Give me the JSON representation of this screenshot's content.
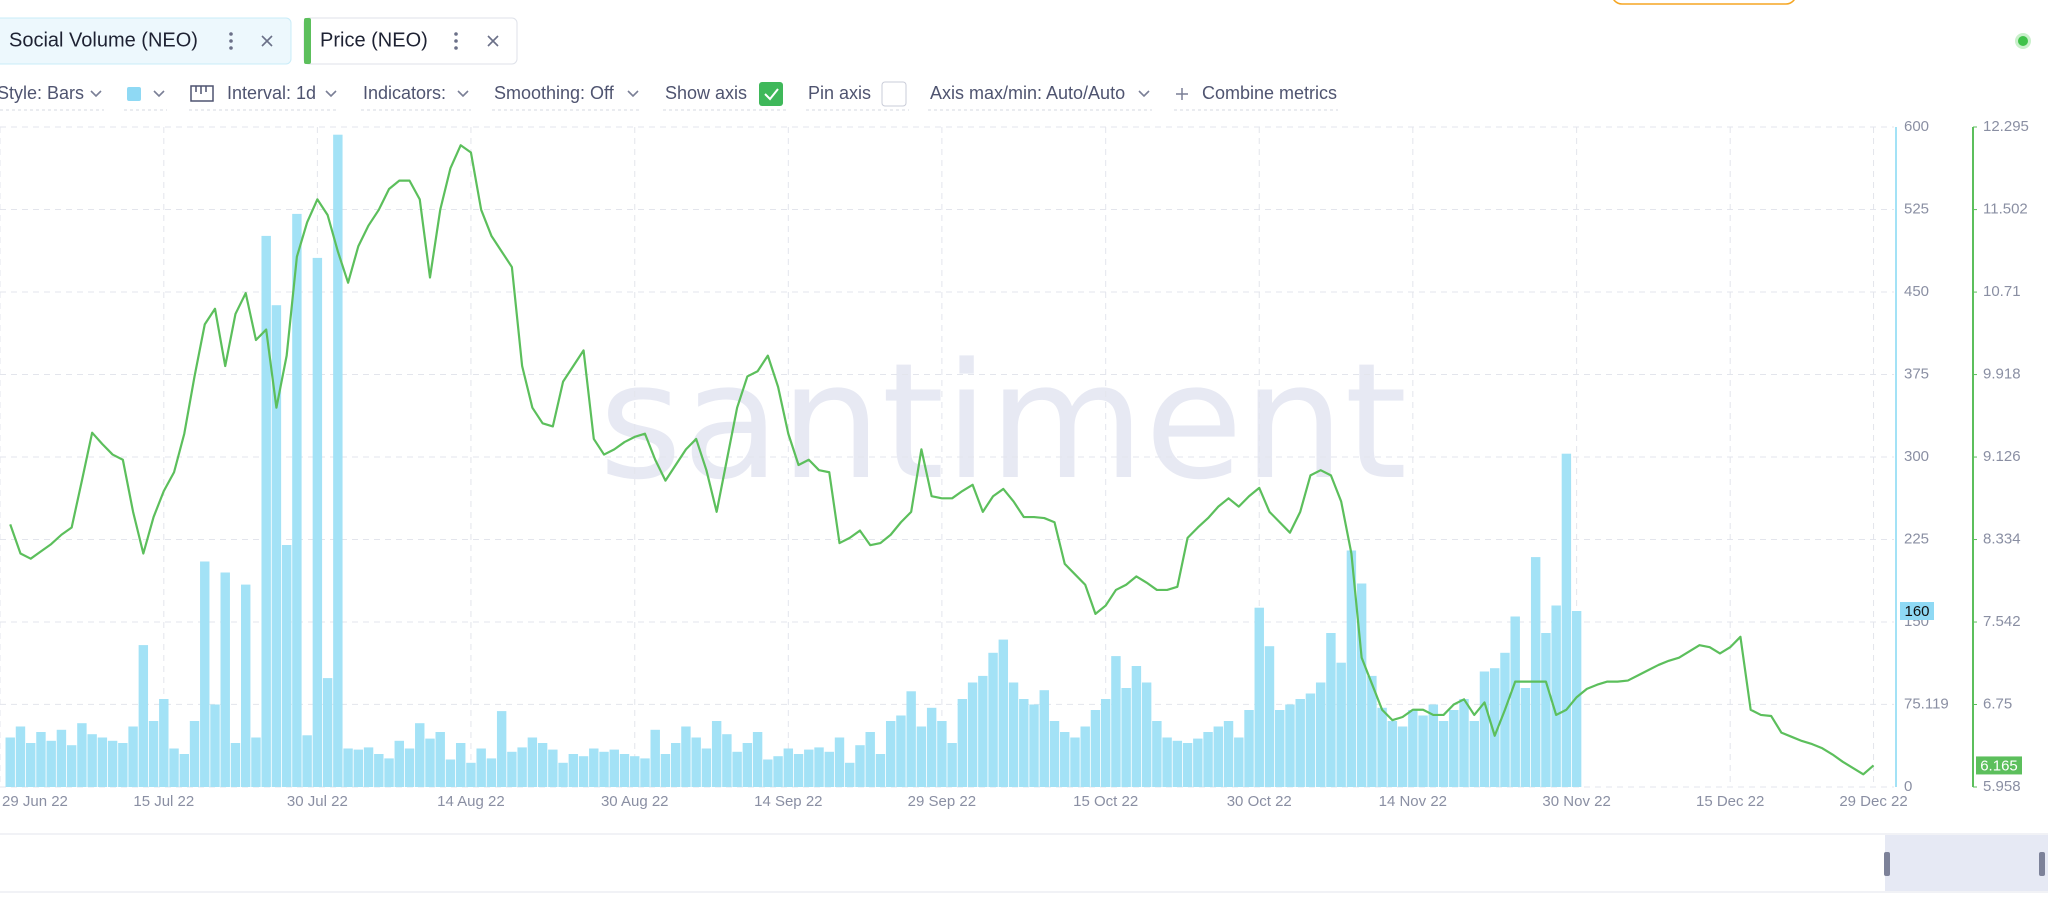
{
  "chart_data": {
    "type": "combo",
    "watermark": "santiment",
    "toolbar": {
      "style": "Style: Bars",
      "interval": "Interval: 1d",
      "indicators": "Indicators:",
      "smoothing": "Smoothing: Off",
      "show_axis": "Show axis",
      "pin_axis": "Pin axis",
      "axis_range": "Axis max/min: Auto/Auto",
      "combine": "Combine metrics"
    },
    "x": [
      "2022-06-30",
      "2022-07-01",
      "2022-07-02",
      "2022-07-03",
      "2022-07-04",
      "2022-07-05",
      "2022-07-06",
      "2022-07-07",
      "2022-07-08",
      "2022-07-09",
      "2022-07-10",
      "2022-07-11",
      "2022-07-12",
      "2022-07-13",
      "2022-07-14",
      "2022-07-15",
      "2022-07-16",
      "2022-07-17",
      "2022-07-18",
      "2022-07-19",
      "2022-07-20",
      "2022-07-21",
      "2022-07-22",
      "2022-07-23",
      "2022-07-24",
      "2022-07-25",
      "2022-07-26",
      "2022-07-27",
      "2022-07-28",
      "2022-07-29",
      "2022-07-30",
      "2022-07-31",
      "2022-08-01",
      "2022-08-02",
      "2022-08-03",
      "2022-08-04",
      "2022-08-05",
      "2022-08-06",
      "2022-08-07",
      "2022-08-08",
      "2022-08-09",
      "2022-08-10",
      "2022-08-11",
      "2022-08-12",
      "2022-08-13",
      "2022-08-14",
      "2022-08-15",
      "2022-08-16",
      "2022-08-17",
      "2022-08-18",
      "2022-08-19",
      "2022-08-20",
      "2022-08-21",
      "2022-08-22",
      "2022-08-23",
      "2022-08-24",
      "2022-08-25",
      "2022-08-26",
      "2022-08-27",
      "2022-08-28",
      "2022-08-29",
      "2022-08-30",
      "2022-08-31",
      "2022-09-01",
      "2022-09-02",
      "2022-09-03",
      "2022-09-04",
      "2022-09-05",
      "2022-09-06",
      "2022-09-07",
      "2022-09-08",
      "2022-09-09",
      "2022-09-10",
      "2022-09-11",
      "2022-09-12",
      "2022-09-13",
      "2022-09-14",
      "2022-09-15",
      "2022-09-16",
      "2022-09-17",
      "2022-09-18",
      "2022-09-19",
      "2022-09-20",
      "2022-09-21",
      "2022-09-22",
      "2022-09-23",
      "2022-09-24",
      "2022-09-25",
      "2022-09-26",
      "2022-09-27",
      "2022-09-28",
      "2022-09-29",
      "2022-09-30",
      "2022-10-01",
      "2022-10-02",
      "2022-10-03",
      "2022-10-04",
      "2022-10-05",
      "2022-10-06",
      "2022-10-07",
      "2022-10-08",
      "2022-10-09",
      "2022-10-10",
      "2022-10-11",
      "2022-10-12",
      "2022-10-13",
      "2022-10-14",
      "2022-10-15",
      "2022-10-16",
      "2022-10-17",
      "2022-10-18",
      "2022-10-19",
      "2022-10-20",
      "2022-10-21",
      "2022-10-22",
      "2022-10-23",
      "2022-10-24",
      "2022-10-25",
      "2022-10-26",
      "2022-10-27",
      "2022-10-28",
      "2022-10-29",
      "2022-10-30",
      "2022-10-31",
      "2022-11-01",
      "2022-11-02",
      "2022-11-03",
      "2022-11-04",
      "2022-11-05",
      "2022-11-06",
      "2022-11-07",
      "2022-11-08",
      "2022-11-09",
      "2022-11-10",
      "2022-11-11",
      "2022-11-12",
      "2022-11-13",
      "2022-11-14",
      "2022-11-15",
      "2022-11-16",
      "2022-11-17",
      "2022-11-18",
      "2022-11-19",
      "2022-11-20",
      "2022-11-21",
      "2022-11-22",
      "2022-11-23",
      "2022-11-24",
      "2022-11-25",
      "2022-11-26",
      "2022-11-27",
      "2022-11-28",
      "2022-11-29",
      "2022-11-30",
      "2022-12-01",
      "2022-12-02",
      "2022-12-03",
      "2022-12-04",
      "2022-12-05",
      "2022-12-06",
      "2022-12-07",
      "2022-12-08",
      "2022-12-09",
      "2022-12-10",
      "2022-12-11",
      "2022-12-12",
      "2022-12-13",
      "2022-12-14",
      "2022-12-15",
      "2022-12-16",
      "2022-12-17",
      "2022-12-18",
      "2022-12-19",
      "2022-12-20",
      "2022-12-21",
      "2022-12-22",
      "2022-12-23",
      "2022-12-24",
      "2022-12-25",
      "2022-12-26",
      "2022-12-27",
      "2022-12-28",
      "2022-12-29"
    ],
    "series": [
      {
        "name": "Social Volume (NEO)",
        "type": "bar",
        "color": "#a3e2f6",
        "values": [
          45,
          55,
          40,
          50,
          42,
          52,
          38,
          58,
          48,
          45,
          42,
          40,
          55,
          129,
          60,
          80,
          35,
          30,
          60,
          205,
          75,
          195,
          40,
          184,
          45,
          501,
          438,
          220,
          521,
          47,
          481,
          99,
          593,
          35,
          34,
          36,
          30,
          26,
          42,
          35,
          58,
          44,
          50,
          25,
          40,
          22,
          35,
          26,
          69,
          32,
          36,
          45,
          40,
          34,
          22,
          30,
          28,
          35,
          32,
          34,
          30,
          28,
          26,
          52,
          30,
          40,
          55,
          45,
          35,
          60,
          48,
          32,
          40,
          50,
          25,
          28,
          35,
          30,
          34,
          36,
          32,
          45,
          22,
          38,
          50,
          30,
          60,
          65,
          87,
          55,
          72,
          60,
          40,
          80,
          95,
          101,
          122,
          134,
          95,
          80,
          75,
          88,
          60,
          50,
          45,
          55,
          70,
          80,
          119,
          90,
          110,
          95,
          60,
          45,
          42,
          40,
          44,
          50,
          55,
          60,
          45,
          70,
          163,
          128,
          70,
          75,
          80,
          85,
          95,
          140,
          113,
          215,
          185,
          101,
          72,
          60,
          55,
          70,
          65,
          75,
          60,
          70,
          80,
          60,
          105,
          108,
          122,
          155,
          90,
          209,
          140,
          165,
          303,
          160,
          null,
          null,
          null,
          null,
          null,
          null,
          null,
          null,
          null,
          null,
          null,
          null,
          null,
          null,
          null,
          null,
          null,
          null,
          null,
          null,
          null,
          null,
          null,
          null,
          null,
          null,
          null,
          null,
          null
        ]
      },
      {
        "name": "Price (NEO)",
        "type": "line",
        "axis": "y2",
        "color": "#5cbf5c",
        "values": [
          8.48,
          8.2,
          8.15,
          8.22,
          8.29,
          8.38,
          8.45,
          8.9,
          9.36,
          9.25,
          9.15,
          9.1,
          8.6,
          8.2,
          8.55,
          8.8,
          8.98,
          9.35,
          9.9,
          10.4,
          10.55,
          10.0,
          10.5,
          10.7,
          10.25,
          10.35,
          9.6,
          10.1,
          11.05,
          11.38,
          11.6,
          11.45,
          11.1,
          10.8,
          11.15,
          11.35,
          11.5,
          11.7,
          11.78,
          11.78,
          11.6,
          10.85,
          11.5,
          11.9,
          12.12,
          12.05,
          11.5,
          11.25,
          11.1,
          10.95,
          10.0,
          9.6,
          9.45,
          9.42,
          9.85,
          10.0,
          10.15,
          9.3,
          9.15,
          9.2,
          9.27,
          9.32,
          9.35,
          9.1,
          8.9,
          9.05,
          9.2,
          9.3,
          9.0,
          8.6,
          9.1,
          9.6,
          9.9,
          9.95,
          10.1,
          9.8,
          9.35,
          9.05,
          9.1,
          9.0,
          8.98,
          8.3,
          8.35,
          8.42,
          8.28,
          8.3,
          8.38,
          8.5,
          8.6,
          9.2,
          8.75,
          8.73,
          8.73,
          8.8,
          8.86,
          8.6,
          8.75,
          8.82,
          8.7,
          8.55,
          8.55,
          8.54,
          8.5,
          8.1,
          8.0,
          7.9,
          7.62,
          7.7,
          7.85,
          7.9,
          7.98,
          7.92,
          7.85,
          7.85,
          7.88,
          8.35,
          8.45,
          8.54,
          8.65,
          8.73,
          8.65,
          8.75,
          8.83,
          8.6,
          8.5,
          8.4,
          8.6,
          8.95,
          9.0,
          8.95,
          8.7,
          8.2,
          7.2,
          6.95,
          6.7,
          6.6,
          6.63,
          6.7,
          6.7,
          6.65,
          6.65,
          6.75,
          6.8,
          6.65,
          6.77,
          6.45,
          6.7,
          6.97,
          6.97,
          6.97,
          6.97,
          6.65,
          6.7,
          6.82,
          6.9,
          6.94,
          6.97,
          6.97,
          6.98,
          7.03,
          7.08,
          7.13,
          7.17,
          7.2,
          7.26,
          7.32,
          7.3,
          7.24,
          7.3,
          7.4,
          6.7,
          6.65,
          6.64,
          6.48,
          6.44,
          6.4,
          6.37,
          6.33,
          6.27,
          6.2,
          6.14,
          6.08,
          6.165
        ]
      }
    ],
    "xlim": [
      "2022-06-29",
      "2022-12-31"
    ],
    "xticks": [
      {
        "value": "2022-06-29",
        "label": "29 Jun 22"
      },
      {
        "value": "2022-07-15",
        "label": "15 Jul 22"
      },
      {
        "value": "2022-07-30",
        "label": "30 Jul 22"
      },
      {
        "value": "2022-08-14",
        "label": "14 Aug 22"
      },
      {
        "value": "2022-08-30",
        "label": "30 Aug 22"
      },
      {
        "value": "2022-09-14",
        "label": "14 Sep 22"
      },
      {
        "value": "2022-09-29",
        "label": "29 Sep 22"
      },
      {
        "value": "2022-10-15",
        "label": "15 Oct 22"
      },
      {
        "value": "2022-10-30",
        "label": "30 Oct 22"
      },
      {
        "value": "2022-11-14",
        "label": "14 Nov 22"
      },
      {
        "value": "2022-11-30",
        "label": "30 Nov 22"
      },
      {
        "value": "2022-12-15",
        "label": "15 Dec 22"
      },
      {
        "value": "2022-12-29",
        "label": "29 Dec 22"
      }
    ],
    "ylim": [
      0,
      600
    ],
    "yticks": [
      0,
      75.119,
      150,
      225,
      300,
      375,
      450,
      525,
      600
    ],
    "y2lim": [
      5.958,
      12.295
    ],
    "y2ticks": [
      5.958,
      6.75,
      7.542,
      8.334,
      9.126,
      9.918,
      10.71,
      11.502,
      12.295
    ],
    "grid": true
  }
}
